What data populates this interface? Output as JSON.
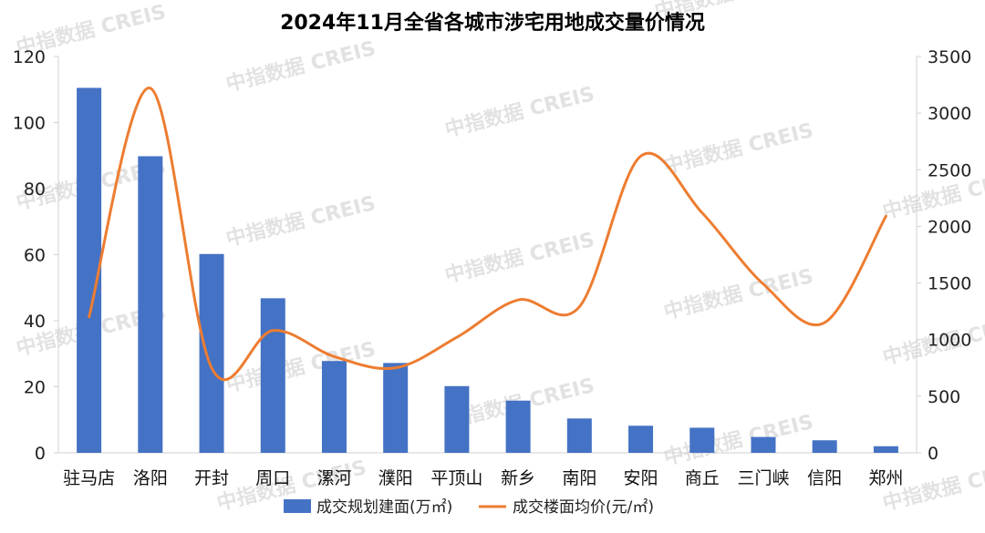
{
  "chart_data": {
    "type": "bar+line",
    "title": "2024年11月全省各城市涉宅用地成交量价情况",
    "categories": [
      "驻马店",
      "洛阳",
      "开封",
      "周口",
      "漯河",
      "濮阳",
      "平顶山",
      "新乡",
      "南阳",
      "安阳",
      "商丘",
      "三门峡",
      "信阳",
      "郑州"
    ],
    "series": [
      {
        "name": "成交规划建面(万㎡)",
        "type": "bar",
        "axis": "left",
        "color": "#4472c4",
        "values": [
          110.5,
          89.8,
          60.2,
          46.8,
          27.8,
          27.2,
          20.2,
          15.8,
          10.4,
          8.2,
          7.6,
          4.8,
          3.8,
          2.0
        ]
      },
      {
        "name": "成交楼面均价(元/㎡)",
        "type": "line",
        "axis": "right",
        "color": "#ed7d31",
        "smooth": true,
        "values": [
          1200,
          3220,
          750,
          1080,
          850,
          750,
          1020,
          1350,
          1290,
          2620,
          2120,
          1490,
          1150,
          2090
        ]
      }
    ],
    "y_left": {
      "min": 0,
      "max": 120,
      "ticks": [
        "0",
        "20",
        "40",
        "60",
        "80",
        "100",
        "120"
      ]
    },
    "y_right": {
      "min": 0,
      "max": 3500,
      "ticks": [
        "0",
        "500",
        "1000",
        "1500",
        "2000",
        "2500",
        "3000",
        "3500"
      ]
    },
    "grid": false,
    "legend": "bottom"
  },
  "watermark": {
    "text": "中指数据 CREIS"
  }
}
